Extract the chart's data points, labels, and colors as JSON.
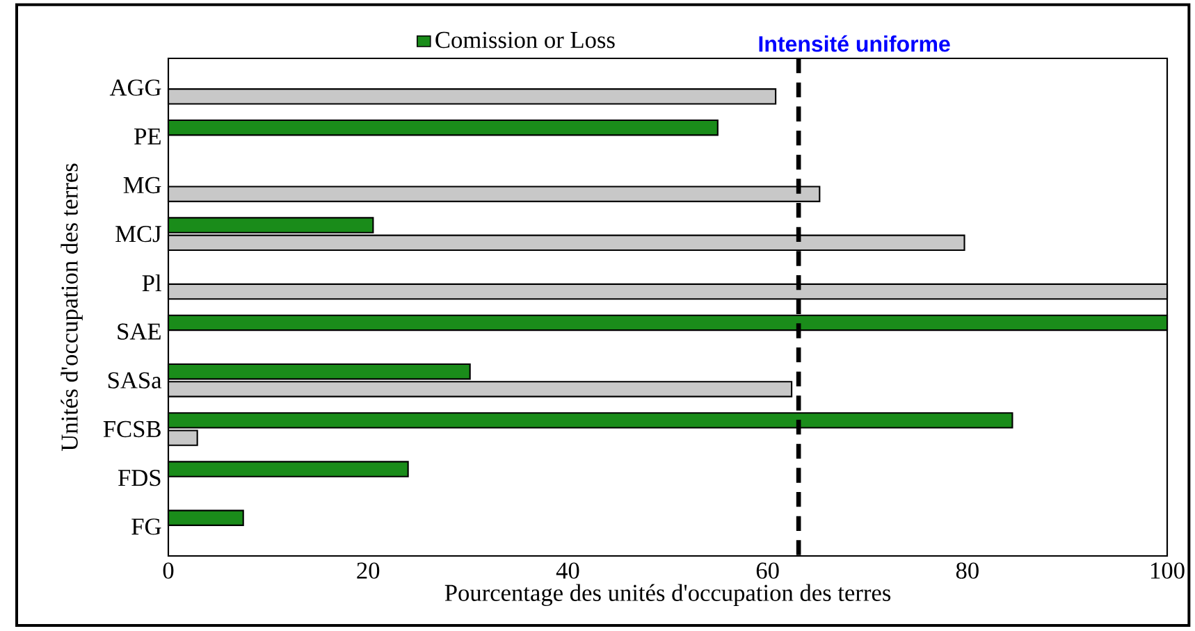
{
  "chart_data": {
    "type": "bar",
    "orientation": "horizontal",
    "xlabel": "Pourcentage des unités d'occupation des terres",
    "ylabel": "Unités d'occupation des terres",
    "categories": [
      "AGG",
      "PE",
      "MG",
      "MCJ",
      "Pl",
      "SAE",
      "SASa",
      "FCSB",
      "FDS",
      "FG"
    ],
    "series": [
      {
        "name": "Comission or Loss",
        "color": "#1a8c1a",
        "values": [
          null,
          55,
          null,
          20.5,
          null,
          100,
          30.2,
          84.5,
          24,
          7.5
        ]
      },
      {
        "color": "#c8c8c8",
        "values": [
          60.8,
          null,
          65.2,
          79.7,
          100,
          null,
          62.4,
          2.9,
          null,
          null
        ]
      }
    ],
    "xlim": [
      0,
      100
    ],
    "xticks": [
      0,
      20,
      40,
      60,
      80,
      100
    ],
    "ref_lines": [
      {
        "axis": "x",
        "value": 63.1,
        "label": "Intensité uniforme",
        "color": "#000000",
        "line_style": "dashed"
      }
    ],
    "legend": "top",
    "grid": false
  }
}
